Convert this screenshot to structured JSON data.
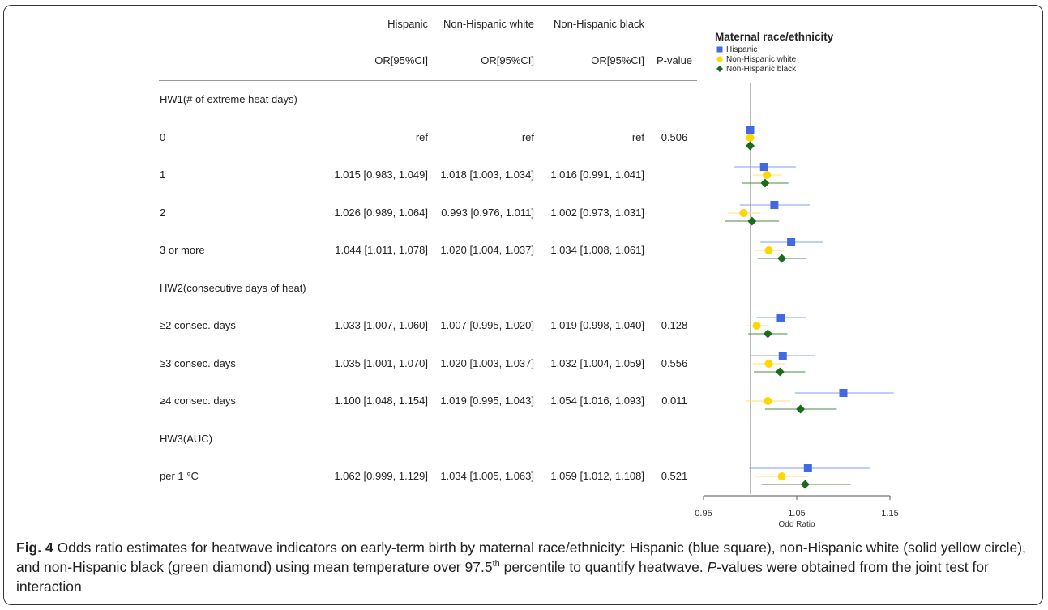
{
  "table": {
    "group_headers": [
      "Hispanic",
      "Non-Hispanic white",
      "Non-Hispanic black"
    ],
    "col_headers": [
      "OR[95%CI]",
      "OR[95%CI]",
      "OR[95%CI]",
      "P-value"
    ],
    "rows": [
      {
        "label": "HW1(# of extreme heat days)",
        "section": true,
        "cells": [
          "",
          "",
          ""
        ],
        "p": ""
      },
      {
        "label": "0",
        "section": false,
        "cells": [
          "ref",
          "ref",
          "ref"
        ],
        "p": "0.506"
      },
      {
        "label": "1",
        "section": false,
        "cells": [
          "1.015 [0.983, 1.049]",
          "1.018 [1.003, 1.034]",
          "1.016 [0.991, 1.041]"
        ],
        "p": ""
      },
      {
        "label": "2",
        "section": false,
        "cells": [
          "1.026 [0.989, 1.064]",
          "0.993 [0.976, 1.011]",
          "1.002 [0.973, 1.031]"
        ],
        "p": ""
      },
      {
        "label": "3 or more",
        "section": false,
        "cells": [
          "1.044 [1.011, 1.078]",
          "1.020 [1.004, 1.037]",
          "1.034 [1.008, 1.061]"
        ],
        "p": ""
      },
      {
        "label": "HW2(consecutive days of heat)",
        "section": true,
        "cells": [
          "",
          "",
          ""
        ],
        "p": ""
      },
      {
        "label": "≥2 consec. days",
        "section": false,
        "cells": [
          "1.033 [1.007, 1.060]",
          "1.007 [0.995, 1.020]",
          "1.019 [0.998, 1.040]"
        ],
        "p": "0.128"
      },
      {
        "label": "≥3 consec. days",
        "section": false,
        "cells": [
          "1.035 [1.001, 1.070]",
          "1.020 [1.003, 1.037]",
          "1.032 [1.004, 1.059]"
        ],
        "p": "0.556"
      },
      {
        "label": "≥4 consec. days",
        "section": false,
        "cells": [
          "1.100 [1.048, 1.154]",
          "1.019 [0.995, 1.043]",
          "1.054 [1.016, 1.093]"
        ],
        "p": "0.011"
      },
      {
        "label": "HW3(AUC)",
        "section": true,
        "cells": [
          "",
          "",
          ""
        ],
        "p": ""
      },
      {
        "label": "per 1 °C",
        "section": false,
        "cells": [
          "1.062 [0.999, 1.129]",
          "1.034 [1.005, 1.063]",
          "1.059 [1.012, 1.108]"
        ],
        "p": "0.521"
      }
    ]
  },
  "legend": {
    "title": "Maternal race/ethnicity",
    "items": [
      {
        "name": "Hispanic",
        "color": "#4169e1",
        "shape": "square"
      },
      {
        "name": "Non-Hispanic white",
        "color": "#ffd700",
        "shape": "circle"
      },
      {
        "name": "Non-Hispanic black",
        "color": "#1a6b1a",
        "shape": "diamond"
      }
    ]
  },
  "chart_data": {
    "type": "scatter",
    "subtype": "forest-plot",
    "title": "",
    "xlabel": "Odd Ratio",
    "ylabel": "",
    "xlim": [
      0.95,
      1.15
    ],
    "xticks": [
      0.95,
      1.05,
      1.15
    ],
    "xtick_labels": [
      "0.95",
      "1.05",
      "1.15"
    ],
    "reference_line": 1.0,
    "categories": [
      "0",
      "1",
      "2",
      "3 or more",
      "≥2 consec. days",
      "≥3 consec. days",
      "≥4 consec. days",
      "per 1 °C"
    ],
    "series": [
      {
        "name": "Hispanic",
        "color": "#4169e1",
        "shape": "square",
        "values": [
          1.0,
          1.015,
          1.026,
          1.044,
          1.033,
          1.035,
          1.1,
          1.062
        ],
        "lower": [
          1.0,
          0.983,
          0.989,
          1.011,
          1.007,
          1.001,
          1.048,
          0.999
        ],
        "upper": [
          1.0,
          1.049,
          1.064,
          1.078,
          1.06,
          1.07,
          1.154,
          1.129
        ]
      },
      {
        "name": "Non-Hispanic white",
        "color": "#ffd700",
        "shape": "circle",
        "values": [
          1.0,
          1.018,
          0.993,
          1.02,
          1.007,
          1.02,
          1.019,
          1.034
        ],
        "lower": [
          1.0,
          1.003,
          0.976,
          1.004,
          0.995,
          1.003,
          0.995,
          1.005
        ],
        "upper": [
          1.0,
          1.034,
          1.011,
          1.037,
          1.02,
          1.037,
          1.043,
          1.063
        ]
      },
      {
        "name": "Non-Hispanic black",
        "color": "#1a6b1a",
        "shape": "diamond",
        "values": [
          1.0,
          1.016,
          1.002,
          1.034,
          1.019,
          1.032,
          1.054,
          1.059
        ],
        "lower": [
          1.0,
          0.991,
          0.973,
          1.008,
          0.998,
          1.004,
          1.016,
          1.012
        ],
        "upper": [
          1.0,
          1.041,
          1.031,
          1.061,
          1.04,
          1.059,
          1.093,
          1.108
        ]
      }
    ]
  },
  "caption": {
    "fig_label": "Fig. 4",
    "text_1": " Odds ratio estimates for heatwave indicators on early-term birth by maternal race/ethnicity: Hispanic (blue square), non-Hispanic white (solid yellow circle), and non-Hispanic black (green diamond) using mean temperature over 97.5",
    "sup": "th",
    "text_2": " percentile to quantify heatwave. ",
    "italic": "P",
    "text_3": "-values were obtained from the joint test for interaction"
  }
}
